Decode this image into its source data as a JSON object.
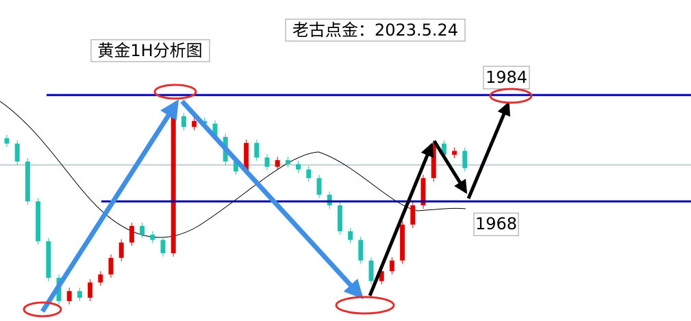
{
  "chart_data": {
    "type": "candlestick",
    "title": "黄金1H分析图",
    "subtitle": "老古点金：2023.5.24",
    "ylim": [
      1950,
      1998.3
    ],
    "levels": [
      1984,
      1968
    ],
    "level_color": "#0000b0",
    "up_color": "#e00000",
    "down_color": "#20c0b0",
    "open": [
      1977.5,
      1976.7,
      1974.0,
      1968.0,
      1962.0,
      1956.5,
      1953.0,
      1954.5,
      1953.5,
      1955.8,
      1957.0,
      1959.5,
      1961.8,
      1964.3,
      1963.0,
      1962.2,
      1960.2,
      1980.8,
      1979.2,
      1980.1,
      1979.7,
      1977.7,
      1974.0,
      1972.5,
      1976.8,
      1974.6,
      1973.2,
      1974.2,
      1973.6,
      1972.8,
      1971.5,
      1969.0,
      1967.4,
      1963.5,
      1962.2,
      1959.1,
      1956.0,
      1957.5,
      1959.1,
      1964.5,
      1967.4,
      1971.5,
      1976.7,
      1975.0,
      1975.6
    ],
    "high": [
      1978.0,
      1977.2,
      1974.5,
      1968.5,
      1962.5,
      1957.0,
      1955.0,
      1955.0,
      1956.3,
      1957.5,
      1960.0,
      1962.3,
      1964.8,
      1964.8,
      1963.5,
      1962.7,
      1981.3,
      1981.3,
      1980.6,
      1980.6,
      1980.2,
      1978.2,
      1974.5,
      1977.3,
      1977.3,
      1975.1,
      1974.7,
      1974.7,
      1974.1,
      1973.3,
      1972.0,
      1969.5,
      1967.9,
      1964.0,
      1962.7,
      1959.6,
      1958.0,
      1959.6,
      1965.0,
      1967.9,
      1972.0,
      1977.2,
      1977.2,
      1976.1,
      1976.1
    ],
    "low": [
      1976.2,
      1973.5,
      1967.5,
      1961.5,
      1956.0,
      1952.5,
      1952.5,
      1953.0,
      1953.0,
      1955.3,
      1956.5,
      1959.0,
      1961.3,
      1962.5,
      1961.7,
      1959.7,
      1959.7,
      1978.7,
      1978.7,
      1979.2,
      1977.2,
      1973.5,
      1972.0,
      1972.0,
      1974.1,
      1972.7,
      1972.7,
      1973.1,
      1972.3,
      1971.0,
      1968.5,
      1966.9,
      1963.0,
      1961.7,
      1958.6,
      1955.5,
      1955.5,
      1957.0,
      1958.6,
      1964.0,
      1966.9,
      1971.0,
      1974.5,
      1974.5,
      1972.5
    ],
    "close": [
      1976.7,
      1974.0,
      1968.0,
      1962.0,
      1956.5,
      1953.0,
      1954.5,
      1953.5,
      1955.8,
      1957.0,
      1959.5,
      1961.8,
      1964.3,
      1963.0,
      1962.2,
      1960.2,
      1980.8,
      1979.2,
      1980.1,
      1979.7,
      1977.7,
      1974.0,
      1972.5,
      1976.8,
      1974.6,
      1973.2,
      1974.2,
      1973.6,
      1972.8,
      1971.5,
      1969.0,
      1967.4,
      1963.5,
      1962.2,
      1959.1,
      1956.0,
      1957.5,
      1959.1,
      1964.5,
      1967.4,
      1971.5,
      1976.7,
      1975.0,
      1975.6,
      1973.0
    ]
  }
}
